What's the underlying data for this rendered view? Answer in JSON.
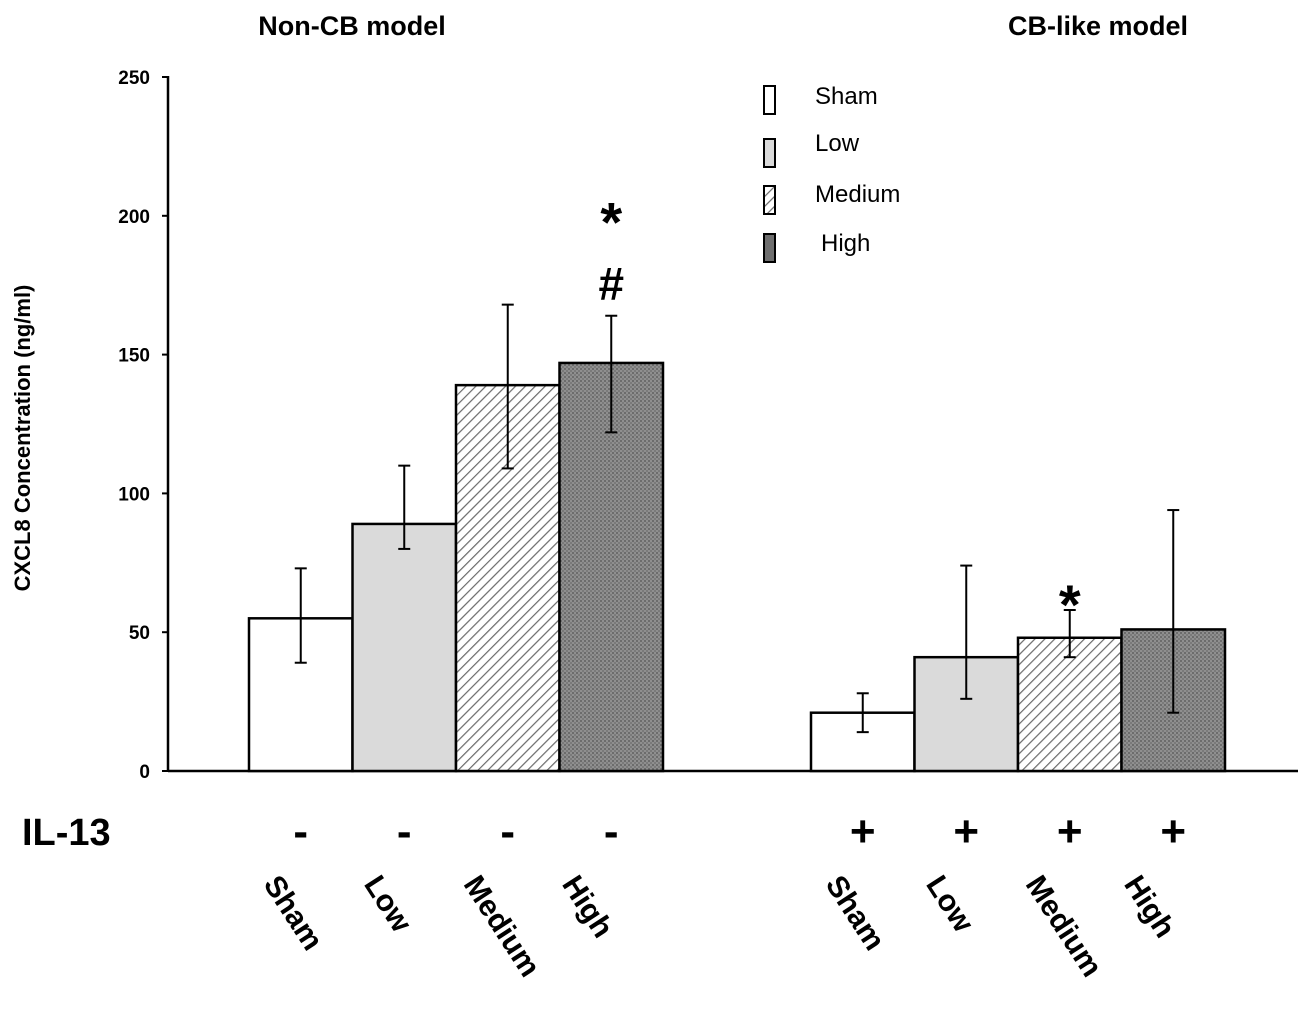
{
  "chart_data": {
    "type": "bar",
    "ylabel": "CXCL8 Concentration (ng/ml)",
    "ylim": [
      0,
      250
    ],
    "yticks": [
      0,
      50,
      100,
      150,
      200,
      250
    ],
    "treatment_label": "IL-13",
    "legend": [
      {
        "name": "Sham",
        "fill": "white"
      },
      {
        "name": "Low",
        "fill": "light-gray"
      },
      {
        "name": "Medium",
        "fill": "diagonal-hatch"
      },
      {
        "name": "High",
        "fill": "dark-dotted"
      }
    ],
    "groups": [
      {
        "title": "Non-CB model",
        "treatment_sign": "-",
        "categories": [
          "Sham",
          "Low",
          "Medium",
          "High"
        ],
        "values": [
          55,
          89,
          139,
          147
        ],
        "err_low": [
          39,
          80,
          109,
          122
        ],
        "err_high": [
          73,
          110,
          168,
          164
        ],
        "annotations": [
          {
            "category": "High",
            "text": "#"
          },
          {
            "category": "High",
            "text": "*"
          }
        ]
      },
      {
        "title": "CB-like model",
        "treatment_sign": "+",
        "categories": [
          "Sham",
          "Low",
          "Medium",
          "High"
        ],
        "values": [
          21,
          41,
          48,
          51
        ],
        "err_low": [
          14,
          26,
          41,
          21
        ],
        "err_high": [
          28,
          74,
          58,
          94
        ],
        "annotations": [
          {
            "category": "Medium",
            "text": "*"
          }
        ]
      }
    ]
  }
}
